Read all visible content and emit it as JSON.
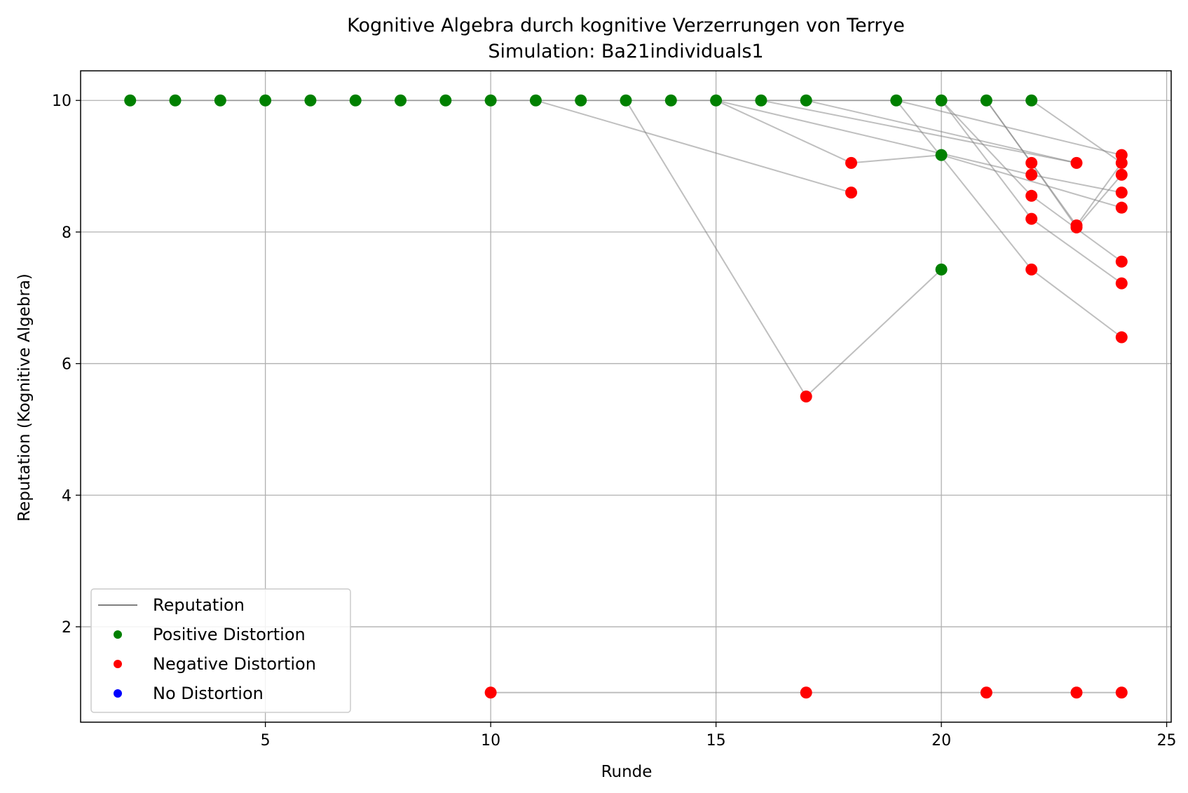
{
  "chart_data": {
    "type": "scatter",
    "title": "Kognitive Algebra durch kognitive Verzerrungen von Terrye",
    "subtitle": "Simulation: Ba21individuals1",
    "xlabel": "Runde",
    "ylabel": "Reputation (Kognitive Algebra)",
    "xlim": [
      0.9,
      25.1
    ],
    "ylim": [
      0.55,
      10.45
    ],
    "xticks": [
      5,
      10,
      15,
      20,
      25
    ],
    "yticks": [
      2,
      4,
      6,
      8,
      10
    ],
    "grid": true,
    "legend_position": "lower-left",
    "legend": [
      {
        "label": "Reputation",
        "kind": "line",
        "color": "#808080"
      },
      {
        "label": "Positive Distortion",
        "kind": "dot",
        "color": "#008000"
      },
      {
        "label": "Negative Distortion",
        "kind": "dot",
        "color": "#ff0000"
      },
      {
        "label": "No Distortion",
        "kind": "dot",
        "color": "#0000ff"
      }
    ],
    "lines": [
      [
        [
          2,
          10
        ],
        [
          3,
          10
        ],
        [
          4,
          10
        ],
        [
          5,
          10
        ],
        [
          6,
          10
        ],
        [
          7,
          10
        ],
        [
          8,
          10
        ],
        [
          9,
          10
        ],
        [
          10,
          10
        ],
        [
          11,
          10
        ],
        [
          12,
          10
        ],
        [
          13,
          10
        ],
        [
          14,
          10
        ],
        [
          15,
          10
        ],
        [
          16,
          10
        ],
        [
          17,
          10
        ],
        [
          18,
          10
        ],
        [
          19,
          10
        ],
        [
          20,
          10
        ],
        [
          21,
          10
        ],
        [
          22,
          10
        ],
        [
          24,
          9.05
        ]
      ],
      [
        [
          10,
          1
        ],
        [
          17,
          1
        ],
        [
          21,
          1
        ],
        [
          23,
          1
        ],
        [
          24,
          1
        ]
      ],
      [
        [
          13,
          10
        ],
        [
          17,
          5.5
        ],
        [
          20,
          7.43
        ]
      ],
      [
        [
          11,
          10
        ],
        [
          18,
          8.6
        ]
      ],
      [
        [
          15,
          10
        ],
        [
          18,
          9.05
        ],
        [
          20,
          9.17
        ],
        [
          24,
          8.37
        ]
      ],
      [
        [
          15,
          10
        ],
        [
          22,
          8.87
        ],
        [
          24,
          8.6
        ]
      ],
      [
        [
          16,
          10
        ],
        [
          23,
          9.05
        ]
      ],
      [
        [
          17,
          10
        ],
        [
          23,
          9.05
        ]
      ],
      [
        [
          19,
          10
        ],
        [
          22,
          7.43
        ],
        [
          24,
          6.4
        ]
      ],
      [
        [
          19,
          10
        ],
        [
          24,
          9.17
        ]
      ],
      [
        [
          20,
          10
        ],
        [
          22,
          8.2
        ],
        [
          24,
          7.22
        ]
      ],
      [
        [
          20,
          10
        ],
        [
          22,
          8.55
        ],
        [
          24,
          7.55
        ]
      ],
      [
        [
          21,
          10
        ],
        [
          23,
          8.1
        ],
        [
          24,
          9.05
        ]
      ],
      [
        [
          21,
          10
        ],
        [
          22,
          9.05
        ],
        [
          23,
          8.07
        ],
        [
          24,
          8.87
        ]
      ]
    ],
    "points_positive": [
      [
        2,
        10
      ],
      [
        3,
        10
      ],
      [
        4,
        10
      ],
      [
        5,
        10
      ],
      [
        6,
        10
      ],
      [
        7,
        10
      ],
      [
        8,
        10
      ],
      [
        9,
        10
      ],
      [
        10,
        10
      ],
      [
        11,
        10
      ],
      [
        12,
        10
      ],
      [
        13,
        10
      ],
      [
        14,
        10
      ],
      [
        15,
        10
      ],
      [
        16,
        10
      ],
      [
        17,
        10
      ],
      [
        19,
        10
      ],
      [
        20,
        10
      ],
      [
        21,
        10
      ],
      [
        22,
        10
      ],
      [
        20,
        9.17
      ],
      [
        20,
        7.43
      ]
    ],
    "points_negative": [
      [
        18,
        9.05
      ],
      [
        18,
        8.6
      ],
      [
        17,
        5.5
      ],
      [
        22,
        9.05
      ],
      [
        22,
        8.87
      ],
      [
        22,
        8.55
      ],
      [
        22,
        8.2
      ],
      [
        22,
        7.43
      ],
      [
        23,
        9.05
      ],
      [
        23,
        8.1
      ],
      [
        23,
        8.07
      ],
      [
        24,
        9.17
      ],
      [
        24,
        9.05
      ],
      [
        24,
        8.87
      ],
      [
        24,
        8.6
      ],
      [
        24,
        8.37
      ],
      [
        24,
        7.55
      ],
      [
        24,
        7.22
      ],
      [
        24,
        6.4
      ],
      [
        10,
        1
      ],
      [
        17,
        1
      ],
      [
        21,
        1
      ],
      [
        23,
        1
      ],
      [
        24,
        1
      ]
    ],
    "points_none": []
  }
}
